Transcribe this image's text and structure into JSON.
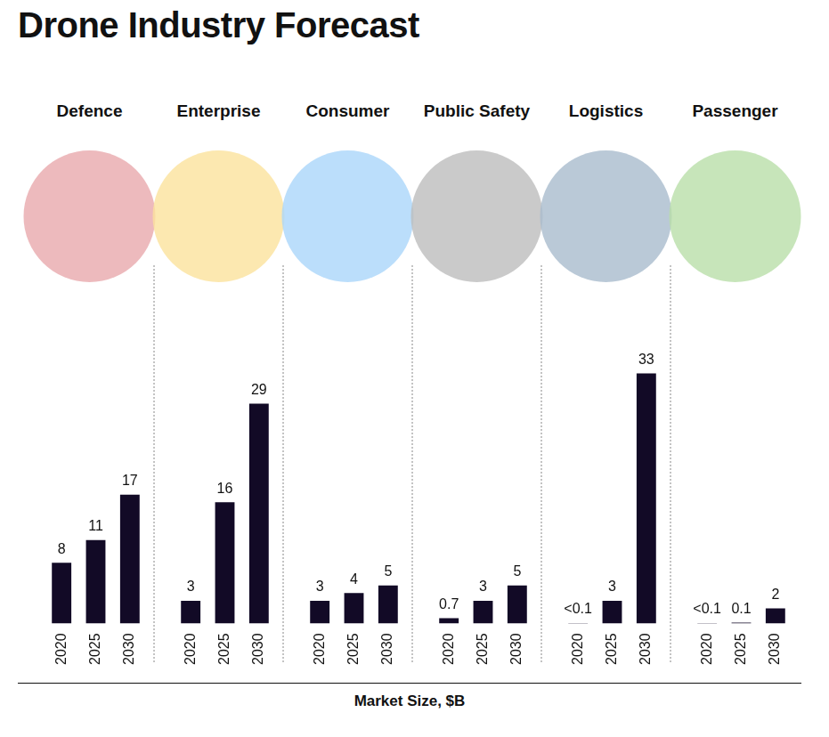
{
  "title": "Drone Industry Forecast",
  "axis_label": "Market Size, $B",
  "chart_data": [
    {
      "type": "bar",
      "title": "Defence",
      "categories": [
        "2020",
        "2025",
        "2030"
      ],
      "values": [
        8,
        11,
        17
      ],
      "color": "#120a26",
      "ylim": [
        0,
        40
      ],
      "data_labels": true,
      "tick_labels": "x",
      "grid": false
    },
    {
      "type": "bar",
      "title": "Enterprise",
      "categories": [
        "2020",
        "2025",
        "2030"
      ],
      "values": [
        3,
        16,
        29
      ],
      "color": "#120a26",
      "ylim": [
        0,
        40
      ],
      "data_labels": true,
      "tick_labels": "x",
      "grid": false
    },
    {
      "type": "bar",
      "title": "Consumer",
      "categories": [
        "2020",
        "2025",
        "2030"
      ],
      "values": [
        3,
        4,
        5
      ],
      "color": "#120a26",
      "ylim": [
        0,
        40
      ],
      "data_labels": true,
      "tick_labels": "x",
      "grid": false
    },
    {
      "type": "bar",
      "title": "Public Safety",
      "categories": [
        "2020",
        "2025",
        "2030"
      ],
      "values": [
        0.7,
        3,
        5
      ],
      "color": "#120a26",
      "ylim": [
        0,
        40
      ],
      "data_labels": true,
      "tick_labels": "x",
      "grid": false
    },
    {
      "type": "bar",
      "title": "Logistics",
      "categories": [
        "2020",
        "2025",
        "2030"
      ],
      "values": [
        0.05,
        3,
        33
      ],
      "value_labels": [
        "<0.1",
        "3",
        "33"
      ],
      "color": "#120a26",
      "ylim": [
        0,
        40
      ],
      "data_labels": true,
      "tick_labels": "x",
      "grid": false
    },
    {
      "type": "bar",
      "title": "Passenger",
      "categories": [
        "2020",
        "2025",
        "2030"
      ],
      "values": [
        0.05,
        0.1,
        2
      ],
      "value_labels": [
        "<0.1",
        "0.1",
        "2"
      ],
      "color": "#120a26",
      "ylim": [
        0,
        40
      ],
      "data_labels": true,
      "tick_labels": "x",
      "grid": false
    }
  ]
}
